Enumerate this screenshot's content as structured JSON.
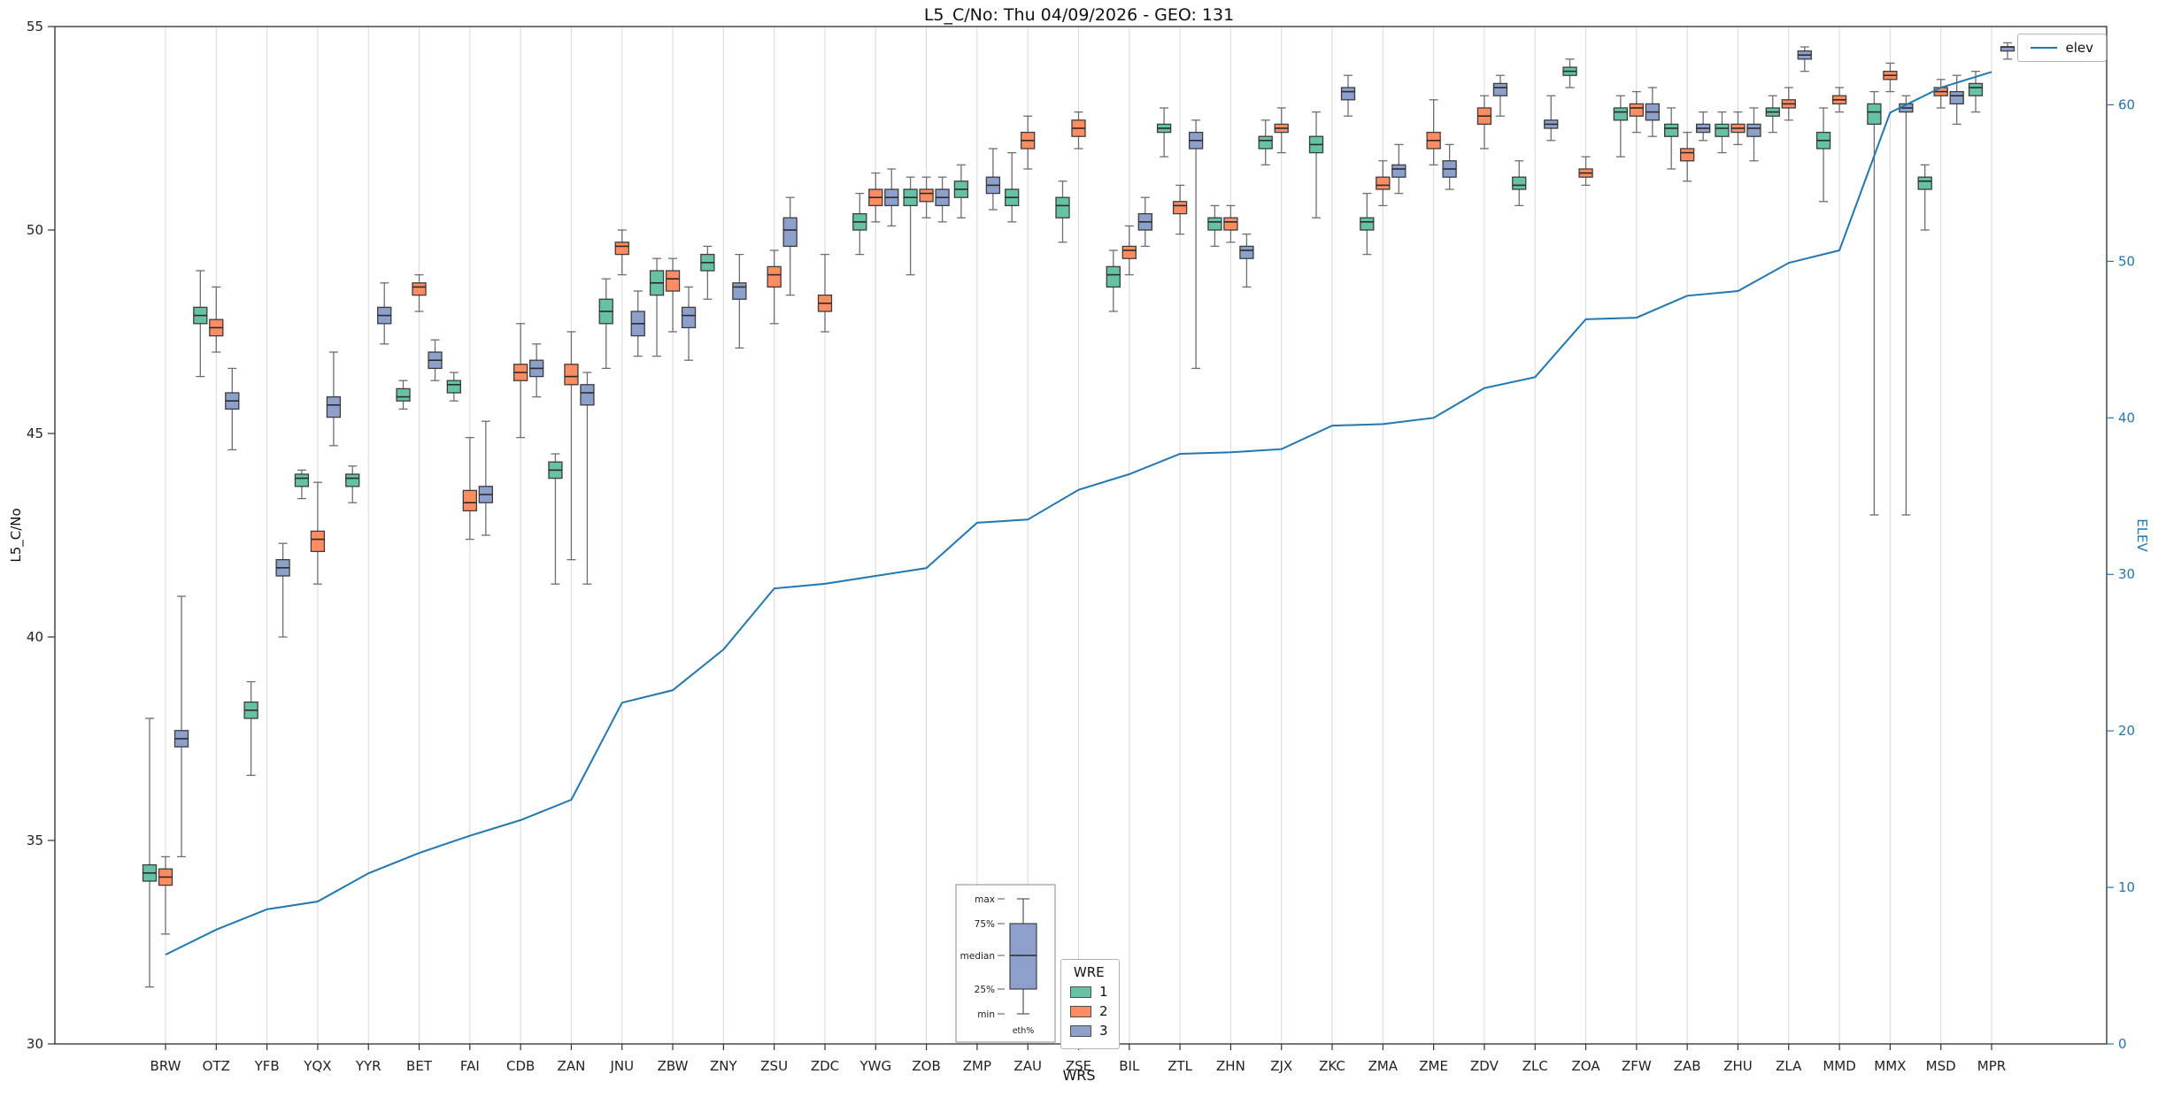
{
  "chart_data": {
    "type": "boxplot",
    "title": "L5_C/No: Thu 04/09/2026 - GEO: 131",
    "xlabel": "WRS",
    "ylabel_left": "L5_C/No",
    "ylabel_right": "ELEV",
    "y_left_range": [
      30,
      55
    ],
    "y_left_ticks": [
      30,
      35,
      40,
      45,
      50,
      55
    ],
    "y_right_range": [
      0,
      65
    ],
    "y_right_ticks": [
      0,
      10,
      20,
      30,
      40,
      50,
      60
    ],
    "grid": "vertical",
    "legend_line_label": "elev",
    "series_legend": {
      "title": "WRE",
      "items": [
        {
          "label": "1",
          "color": "#66c2a5"
        },
        {
          "label": "2",
          "color": "#fc8d62"
        },
        {
          "label": "3",
          "color": "#8da0cb"
        }
      ]
    },
    "inset_labels": {
      "max": "max",
      "p75": "75%",
      "median": "median",
      "p25": "25%",
      "min": "min",
      "bottom": "eth%"
    },
    "colors": {
      "line": "#1f77b4",
      "box_edge": "#3c3c3c",
      "whisker": "#6e6e6e",
      "grid": "#d8d8d8",
      "frame": "#2b2b2b",
      "right_axis": "#1f77b4"
    },
    "stations": [
      {
        "name": "BRW",
        "elev": 5.7,
        "boxes": [
          [
            31.4,
            34.0,
            34.2,
            34.4,
            38.0
          ],
          [
            32.7,
            33.9,
            34.1,
            34.3,
            34.6
          ],
          [
            34.6,
            37.3,
            37.5,
            37.7,
            41.0
          ]
        ]
      },
      {
        "name": "OTZ",
        "elev": 7.3,
        "boxes": [
          [
            46.4,
            47.7,
            47.9,
            48.1,
            49.0
          ],
          [
            47.0,
            47.4,
            47.6,
            47.8,
            48.6
          ],
          [
            44.6,
            45.6,
            45.8,
            46.0,
            46.6
          ]
        ]
      },
      {
        "name": "YFB",
        "elev": 8.6,
        "boxes": [
          [
            36.6,
            38.0,
            38.2,
            38.4,
            38.9
          ],
          null,
          [
            40.0,
            41.5,
            41.7,
            41.9,
            42.3
          ]
        ]
      },
      {
        "name": "YQX",
        "elev": 9.1,
        "boxes": [
          [
            43.4,
            43.7,
            43.9,
            44.0,
            44.1
          ],
          [
            41.3,
            42.1,
            42.4,
            42.6,
            43.8
          ],
          [
            44.7,
            45.4,
            45.7,
            45.9,
            47.0
          ]
        ]
      },
      {
        "name": "YYR",
        "elev": 10.9,
        "boxes": [
          [
            43.3,
            43.7,
            43.9,
            44.0,
            44.2
          ],
          null,
          [
            47.2,
            47.7,
            47.9,
            48.1,
            48.7
          ]
        ]
      },
      {
        "name": "BET",
        "elev": 12.2,
        "boxes": [
          [
            45.6,
            45.8,
            45.9,
            46.1,
            46.3
          ],
          [
            48.0,
            48.4,
            48.6,
            48.7,
            48.9
          ],
          [
            46.3,
            46.6,
            46.8,
            47.0,
            47.3
          ]
        ]
      },
      {
        "name": "FAI",
        "elev": 13.3,
        "boxes": [
          [
            45.8,
            46.0,
            46.2,
            46.3,
            46.5
          ],
          [
            42.4,
            43.1,
            43.3,
            43.6,
            44.9
          ],
          [
            42.5,
            43.3,
            43.5,
            43.7,
            45.3
          ]
        ]
      },
      {
        "name": "CDB",
        "elev": 14.3,
        "boxes": [
          null,
          [
            44.9,
            46.3,
            46.5,
            46.7,
            47.7
          ],
          [
            45.9,
            46.4,
            46.6,
            46.8,
            47.2
          ]
        ]
      },
      {
        "name": "ZAN",
        "elev": 15.6,
        "boxes": [
          [
            41.3,
            43.9,
            44.1,
            44.3,
            44.5
          ],
          [
            41.9,
            46.2,
            46.4,
            46.7,
            47.5
          ],
          [
            41.3,
            45.7,
            46.0,
            46.2,
            46.5
          ]
        ]
      },
      {
        "name": "JNU",
        "elev": 21.8,
        "boxes": [
          [
            46.6,
            47.7,
            48.0,
            48.3,
            48.8
          ],
          [
            48.9,
            49.4,
            49.6,
            49.7,
            50.0
          ],
          [
            46.9,
            47.4,
            47.7,
            48.0,
            48.5
          ]
        ]
      },
      {
        "name": "ZBW",
        "elev": 22.6,
        "boxes": [
          [
            46.9,
            48.4,
            48.7,
            49.0,
            49.3
          ],
          [
            47.5,
            48.5,
            48.8,
            49.0,
            49.3
          ],
          [
            46.8,
            47.6,
            47.9,
            48.1,
            48.6
          ]
        ]
      },
      {
        "name": "ZNY",
        "elev": 25.2,
        "boxes": [
          [
            48.3,
            49.0,
            49.2,
            49.4,
            49.6
          ],
          null,
          [
            47.1,
            48.3,
            48.6,
            48.7,
            49.4
          ]
        ]
      },
      {
        "name": "ZSU",
        "elev": 29.1,
        "boxes": [
          null,
          [
            47.7,
            48.6,
            48.9,
            49.1,
            49.5
          ],
          [
            48.4,
            49.6,
            50.0,
            50.3,
            50.8
          ]
        ]
      },
      {
        "name": "ZDC",
        "elev": 29.4,
        "boxes": [
          null,
          [
            47.5,
            48.0,
            48.2,
            48.4,
            49.4
          ],
          null
        ]
      },
      {
        "name": "YWG",
        "elev": 29.9,
        "boxes": [
          [
            49.4,
            50.0,
            50.2,
            50.4,
            50.9
          ],
          [
            50.2,
            50.6,
            50.8,
            51.0,
            51.4
          ],
          [
            50.1,
            50.6,
            50.8,
            51.0,
            51.5
          ]
        ]
      },
      {
        "name": "ZOB",
        "elev": 30.4,
        "boxes": [
          [
            48.9,
            50.6,
            50.8,
            51.0,
            51.3
          ],
          [
            50.3,
            50.7,
            50.9,
            51.0,
            51.3
          ],
          [
            50.2,
            50.6,
            50.8,
            51.0,
            51.3
          ]
        ]
      },
      {
        "name": "ZMP",
        "elev": 33.3,
        "boxes": [
          [
            50.3,
            50.8,
            51.0,
            51.2,
            51.6
          ],
          null,
          [
            50.5,
            50.9,
            51.1,
            51.3,
            52.0
          ]
        ]
      },
      {
        "name": "ZAU",
        "elev": 33.5,
        "boxes": [
          [
            50.2,
            50.6,
            50.8,
            51.0,
            51.9
          ],
          [
            51.5,
            52.0,
            52.2,
            52.4,
            52.8
          ],
          null
        ]
      },
      {
        "name": "ZSE",
        "elev": 35.4,
        "boxes": [
          [
            49.7,
            50.3,
            50.6,
            50.8,
            51.2
          ],
          [
            52.0,
            52.3,
            52.5,
            52.7,
            52.9
          ],
          null
        ]
      },
      {
        "name": "BIL",
        "elev": 36.4,
        "boxes": [
          [
            48.0,
            48.6,
            48.9,
            49.1,
            49.5
          ],
          [
            48.9,
            49.3,
            49.5,
            49.6,
            50.1
          ],
          [
            49.6,
            50.0,
            50.2,
            50.4,
            50.8
          ]
        ]
      },
      {
        "name": "ZTL",
        "elev": 37.7,
        "boxes": [
          [
            51.8,
            52.4,
            52.5,
            52.6,
            53.0
          ],
          [
            49.9,
            50.4,
            50.6,
            50.7,
            51.1
          ],
          [
            46.6,
            52.0,
            52.2,
            52.4,
            52.7
          ]
        ]
      },
      {
        "name": "ZHN",
        "elev": 37.8,
        "boxes": [
          [
            49.6,
            50.0,
            50.2,
            50.3,
            50.6
          ],
          [
            49.7,
            50.0,
            50.2,
            50.3,
            50.6
          ],
          [
            48.6,
            49.3,
            49.5,
            49.6,
            49.9
          ]
        ]
      },
      {
        "name": "ZJX",
        "elev": 38.0,
        "boxes": [
          [
            51.6,
            52.0,
            52.2,
            52.3,
            52.7
          ],
          [
            51.9,
            52.4,
            52.5,
            52.6,
            53.0
          ],
          null
        ]
      },
      {
        "name": "ZKC",
        "elev": 39.5,
        "boxes": [
          [
            50.3,
            51.9,
            52.1,
            52.3,
            52.9
          ],
          null,
          [
            52.8,
            53.2,
            53.4,
            53.5,
            53.8
          ]
        ]
      },
      {
        "name": "ZMA",
        "elev": 39.6,
        "boxes": [
          [
            49.4,
            50.0,
            50.2,
            50.3,
            50.9
          ],
          [
            50.6,
            51.0,
            51.1,
            51.3,
            51.7
          ],
          [
            50.9,
            51.3,
            51.5,
            51.6,
            52.1
          ]
        ]
      },
      {
        "name": "ZME",
        "elev": 40.0,
        "boxes": [
          null,
          [
            51.6,
            52.0,
            52.2,
            52.4,
            53.2
          ],
          [
            51.0,
            51.3,
            51.5,
            51.7,
            52.1
          ]
        ]
      },
      {
        "name": "ZDV",
        "elev": 41.9,
        "boxes": [
          null,
          [
            52.0,
            52.6,
            52.8,
            53.0,
            53.3
          ],
          [
            52.8,
            53.3,
            53.5,
            53.6,
            53.8
          ]
        ]
      },
      {
        "name": "ZLC",
        "elev": 42.6,
        "boxes": [
          [
            50.6,
            51.0,
            51.1,
            51.3,
            51.7
          ],
          null,
          [
            52.2,
            52.5,
            52.6,
            52.7,
            53.3
          ]
        ]
      },
      {
        "name": "ZOA",
        "elev": 46.3,
        "boxes": [
          [
            53.5,
            53.8,
            53.9,
            54.0,
            54.2
          ],
          [
            51.1,
            51.3,
            51.4,
            51.5,
            51.8
          ],
          null
        ]
      },
      {
        "name": "ZFW",
        "elev": 46.4,
        "boxes": [
          [
            51.8,
            52.7,
            52.9,
            53.0,
            53.3
          ],
          [
            52.4,
            52.8,
            53.0,
            53.1,
            53.4
          ],
          [
            52.3,
            52.7,
            52.9,
            53.1,
            53.5
          ]
        ]
      },
      {
        "name": "ZAB",
        "elev": 47.8,
        "boxes": [
          [
            51.5,
            52.3,
            52.5,
            52.6,
            53.0
          ],
          [
            51.2,
            51.7,
            51.9,
            52.0,
            52.4
          ],
          [
            52.2,
            52.4,
            52.5,
            52.6,
            52.9
          ]
        ]
      },
      {
        "name": "ZHU",
        "elev": 48.1,
        "boxes": [
          [
            51.9,
            52.3,
            52.5,
            52.6,
            52.9
          ],
          [
            52.1,
            52.4,
            52.5,
            52.6,
            52.9
          ],
          [
            51.7,
            52.3,
            52.5,
            52.6,
            53.0
          ]
        ]
      },
      {
        "name": "ZLA",
        "elev": 49.9,
        "boxes": [
          [
            52.4,
            52.8,
            52.9,
            53.0,
            53.3
          ],
          [
            52.7,
            53.0,
            53.1,
            53.2,
            53.5
          ],
          [
            53.9,
            54.2,
            54.3,
            54.4,
            54.5
          ]
        ]
      },
      {
        "name": "MMD",
        "elev": 50.7,
        "boxes": [
          [
            50.7,
            52.0,
            52.2,
            52.4,
            53.0
          ],
          [
            52.9,
            53.1,
            53.2,
            53.3,
            53.5
          ],
          null
        ]
      },
      {
        "name": "MMX",
        "elev": 59.5,
        "boxes": [
          [
            43.0,
            52.6,
            52.9,
            53.1,
            53.4
          ],
          [
            53.4,
            53.7,
            53.8,
            53.9,
            54.1
          ],
          [
            43.0,
            52.9,
            53.0,
            53.1,
            53.3
          ]
        ]
      },
      {
        "name": "MSD",
        "elev": 61.1,
        "boxes": [
          [
            50.0,
            51.0,
            51.2,
            51.3,
            51.6
          ],
          [
            53.0,
            53.3,
            53.4,
            53.5,
            53.7
          ],
          [
            52.6,
            53.1,
            53.3,
            53.4,
            53.8
          ]
        ]
      },
      {
        "name": "MPR",
        "elev": 62.1,
        "boxes": [
          [
            52.9,
            53.3,
            53.5,
            53.6,
            53.9
          ],
          null,
          [
            54.2,
            54.4,
            54.5,
            54.5,
            54.6
          ]
        ]
      }
    ]
  }
}
